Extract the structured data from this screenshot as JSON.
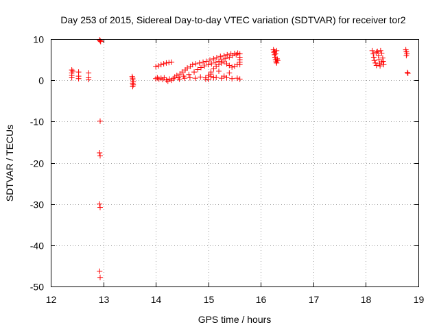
{
  "chart_data": {
    "type": "scatter",
    "title": "Day 253 of 2015, Sidereal Day-to-day VTEC variation (SDTVAR) for receiver tor2",
    "xlabel": "GPS time / hours",
    "ylabel": "SDTVAR / TECUs",
    "xlim": [
      12,
      19
    ],
    "ylim": [
      -50,
      10
    ],
    "xticks": [
      12,
      13,
      14,
      15,
      16,
      17,
      18,
      19
    ],
    "yticks": [
      -50,
      -40,
      -30,
      -20,
      -10,
      0,
      10
    ],
    "grid": true,
    "marker": "+",
    "color": "#ff0000",
    "points": [
      [
        12.4,
        2.5
      ],
      [
        12.4,
        1.8
      ],
      [
        12.4,
        1.2
      ],
      [
        12.4,
        0.6
      ],
      [
        12.42,
        2.2
      ],
      [
        12.53,
        2.0
      ],
      [
        12.53,
        1.0
      ],
      [
        12.53,
        0.4
      ],
      [
        12.72,
        1.8
      ],
      [
        12.72,
        0.6
      ],
      [
        12.72,
        0.2
      ],
      [
        12.93,
        9.8
      ],
      [
        12.94,
        9.6
      ],
      [
        12.95,
        9.4
      ],
      [
        12.94,
        -9.9
      ],
      [
        12.93,
        -17.6
      ],
      [
        12.94,
        -18.3
      ],
      [
        12.93,
        -30.0
      ],
      [
        12.94,
        -30.8
      ],
      [
        12.93,
        -46.3
      ],
      [
        12.94,
        -47.8
      ],
      [
        13.55,
        0.9
      ],
      [
        13.56,
        0.5
      ],
      [
        13.56,
        0.1
      ],
      [
        13.57,
        -0.3
      ],
      [
        13.56,
        -0.7
      ],
      [
        13.57,
        -1.1
      ],
      [
        13.56,
        -1.5
      ],
      [
        14.0,
        3.3
      ],
      [
        14.05,
        3.5
      ],
      [
        14.1,
        3.8
      ],
      [
        14.15,
        4.0
      ],
      [
        14.2,
        4.2
      ],
      [
        14.25,
        4.3
      ],
      [
        14.3,
        4.4
      ],
      [
        14.0,
        0.4
      ],
      [
        14.03,
        0.6
      ],
      [
        14.06,
        0.3
      ],
      [
        14.1,
        0.5
      ],
      [
        14.13,
        0.2
      ],
      [
        14.16,
        0.6
      ],
      [
        14.2,
        0.1
      ],
      [
        14.23,
        -0.2
      ],
      [
        14.26,
        0.3
      ],
      [
        14.3,
        0.0
      ],
      [
        14.33,
        0.4
      ],
      [
        14.36,
        0.8
      ],
      [
        14.4,
        1.2
      ],
      [
        14.43,
        0.6
      ],
      [
        14.46,
        1.5
      ],
      [
        14.5,
        2.0
      ],
      [
        14.53,
        1.0
      ],
      [
        14.56,
        2.5
      ],
      [
        14.6,
        3.0
      ],
      [
        14.63,
        1.4
      ],
      [
        14.66,
        3.4
      ],
      [
        14.7,
        3.8
      ],
      [
        14.73,
        2.0
      ],
      [
        14.76,
        4.0
      ],
      [
        14.8,
        2.6
      ],
      [
        14.83,
        4.2
      ],
      [
        14.86,
        3.1
      ],
      [
        14.9,
        4.4
      ],
      [
        14.93,
        3.5
      ],
      [
        14.96,
        4.6
      ],
      [
        15.0,
        3.8
      ],
      [
        15.03,
        4.9
      ],
      [
        15.06,
        4.0
      ],
      [
        15.1,
        5.2
      ],
      [
        15.13,
        4.3
      ],
      [
        15.16,
        5.5
      ],
      [
        15.2,
        4.6
      ],
      [
        15.23,
        5.8
      ],
      [
        15.26,
        5.0
      ],
      [
        15.3,
        6.0
      ],
      [
        15.33,
        5.3
      ],
      [
        15.36,
        6.2
      ],
      [
        15.4,
        5.6
      ],
      [
        15.43,
        6.4
      ],
      [
        15.46,
        6.0
      ],
      [
        15.5,
        6.5
      ],
      [
        15.53,
        6.2
      ],
      [
        15.56,
        6.6
      ],
      [
        15.6,
        6.4
      ],
      [
        15.6,
        5.6
      ],
      [
        15.6,
        5.0
      ],
      [
        15.6,
        4.4
      ],
      [
        15.6,
        3.8
      ],
      [
        14.45,
        0.3
      ],
      [
        14.55,
        0.5
      ],
      [
        14.65,
        0.6
      ],
      [
        14.75,
        0.5
      ],
      [
        14.85,
        0.8
      ],
      [
        14.95,
        0.6
      ],
      [
        15.05,
        0.9
      ],
      [
        15.15,
        0.7
      ],
      [
        15.25,
        0.5
      ],
      [
        15.35,
        0.6
      ],
      [
        15.45,
        0.4
      ],
      [
        15.55,
        0.5
      ],
      [
        15.6,
        0.3
      ],
      [
        14.95,
        0.3
      ],
      [
        15.0,
        1.2
      ],
      [
        15.05,
        2.0
      ],
      [
        15.1,
        2.8
      ],
      [
        15.15,
        3.4
      ],
      [
        15.2,
        3.8
      ],
      [
        15.25,
        4.2
      ],
      [
        15.3,
        4.5
      ],
      [
        15.35,
        4.0
      ],
      [
        15.4,
        3.6
      ],
      [
        15.45,
        3.2
      ],
      [
        15.5,
        3.4
      ],
      [
        15.55,
        3.8
      ],
      [
        15.0,
        0.2
      ],
      [
        15.05,
        1.5
      ],
      [
        15.1,
        0.6
      ],
      [
        15.2,
        2.2
      ],
      [
        15.3,
        1.0
      ],
      [
        15.4,
        1.8
      ],
      [
        16.24,
        7.4
      ],
      [
        16.25,
        6.8
      ],
      [
        16.26,
        6.2
      ],
      [
        16.27,
        5.6
      ],
      [
        16.28,
        5.0
      ],
      [
        16.29,
        4.5
      ],
      [
        16.3,
        4.2
      ],
      [
        16.26,
        7.0
      ],
      [
        16.28,
        6.4
      ],
      [
        16.3,
        7.2
      ],
      [
        16.31,
        5.2
      ],
      [
        16.32,
        4.8
      ],
      [
        18.12,
        7.2
      ],
      [
        18.14,
        6.4
      ],
      [
        18.15,
        5.6
      ],
      [
        18.16,
        4.8
      ],
      [
        18.18,
        4.2
      ],
      [
        18.2,
        3.6
      ],
      [
        18.22,
        7.0
      ],
      [
        18.24,
        6.0
      ],
      [
        18.25,
        5.0
      ],
      [
        18.26,
        4.0
      ],
      [
        18.28,
        7.2
      ],
      [
        18.3,
        6.6
      ],
      [
        18.32,
        5.4
      ],
      [
        18.33,
        4.6
      ],
      [
        18.34,
        3.8
      ],
      [
        18.2,
        6.8
      ],
      [
        18.27,
        3.5
      ],
      [
        18.3,
        4.4
      ],
      [
        18.76,
        7.4
      ],
      [
        18.77,
        6.9
      ],
      [
        18.78,
        6.4
      ],
      [
        18.77,
        6.0
      ],
      [
        18.79,
        1.9
      ],
      [
        18.8,
        1.7
      ]
    ]
  }
}
